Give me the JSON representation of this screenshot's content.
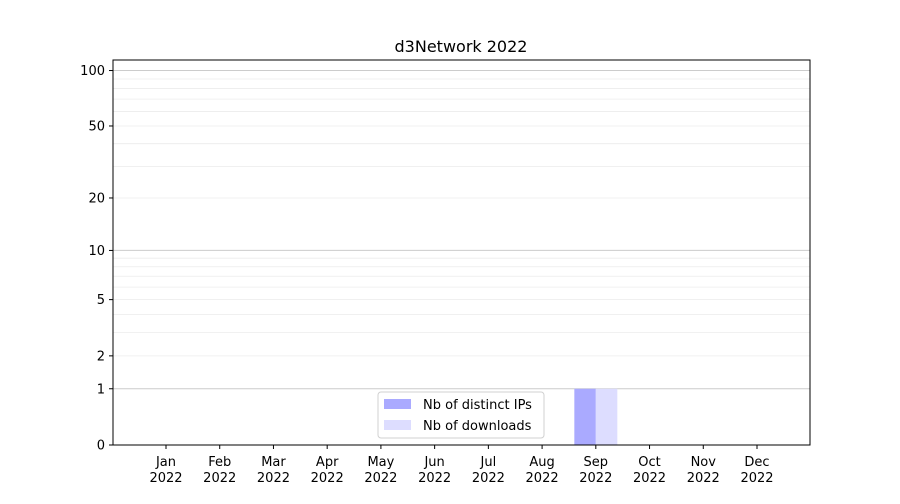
{
  "chart_data": {
    "type": "bar",
    "title": "d3Network 2022",
    "xlabel": "",
    "ylabel": "",
    "y_scale": "log(1+y)",
    "ylim": [
      0,
      114
    ],
    "y_ticks": [
      0,
      1,
      2,
      5,
      10,
      20,
      50,
      100
    ],
    "y_tick_labels": [
      "0",
      "1",
      "2",
      "5",
      "10",
      "20",
      "50",
      "100"
    ],
    "grid": true,
    "categories": [
      "Jan\n2022",
      "Feb\n2022",
      "Mar\n2022",
      "Apr\n2022",
      "May\n2022",
      "Jun\n2022",
      "Jul\n2022",
      "Aug\n2022",
      "Sep\n2022",
      "Oct\n2022",
      "Nov\n2022",
      "Dec\n2022"
    ],
    "series": [
      {
        "name": "Nb of distinct IPs",
        "color": "#aaaaff",
        "values": [
          0,
          0,
          0,
          0,
          0,
          0,
          0,
          0,
          1,
          0,
          0,
          0
        ]
      },
      {
        "name": "Nb of downloads",
        "color": "#ddddff",
        "values": [
          0,
          0,
          0,
          0,
          0,
          0,
          0,
          0,
          1,
          0,
          0,
          0
        ]
      }
    ],
    "legend_position": "lower-center"
  }
}
